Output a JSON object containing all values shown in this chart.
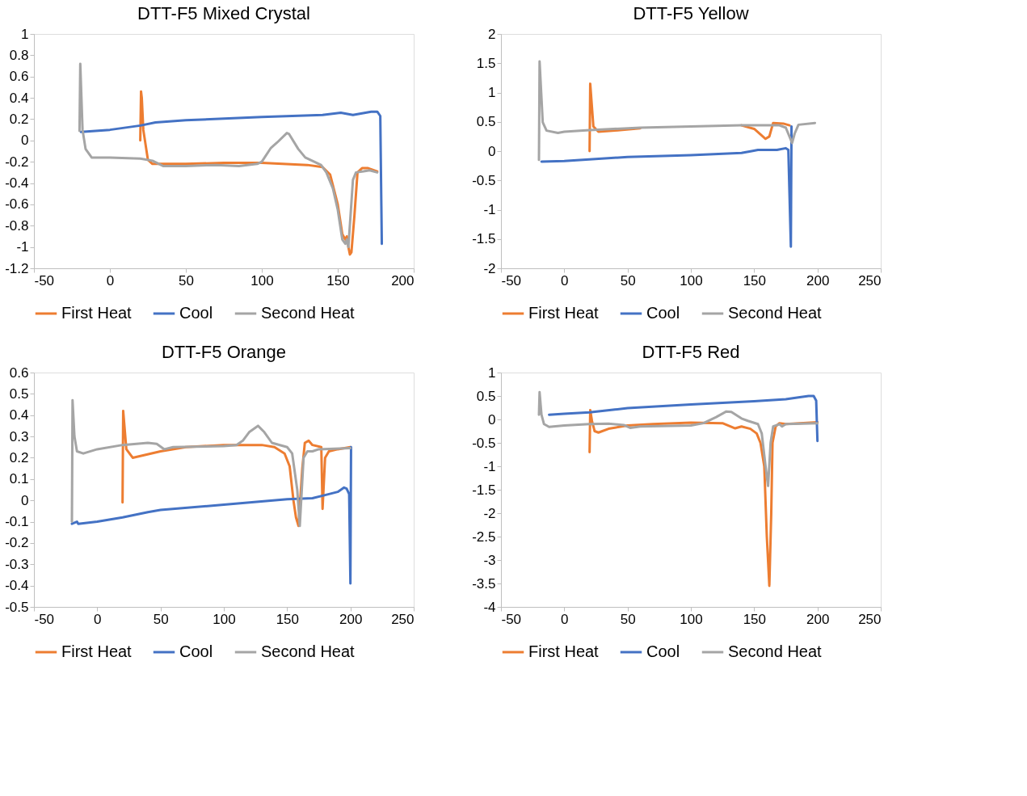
{
  "chart_data": [
    {
      "type": "line",
      "title": "DTT-F5 Mixed Crystal",
      "xlim": [
        -50,
        200
      ],
      "xticks": [
        -50,
        0,
        50,
        100,
        150,
        200
      ],
      "ylim": [
        -1.2,
        1
      ],
      "yticks": [
        -1.2,
        -1,
        -0.8,
        -0.6,
        -0.4,
        -0.2,
        0,
        0.2,
        0.4,
        0.6,
        0.8,
        1
      ],
      "grid": false,
      "legend": "bottom",
      "marker": "none",
      "line_style": "solid",
      "series": [
        {
          "name": "First Heat",
          "color": "#ed7d31",
          "x": [
            20,
            20.5,
            21,
            22,
            25,
            28,
            50,
            75,
            100,
            130,
            140,
            145,
            150,
            153,
            155,
            156,
            157,
            158,
            159,
            161,
            163,
            166,
            170,
            176
          ],
          "values": [
            0,
            0.46,
            0.4,
            0.1,
            -0.18,
            -0.22,
            -0.22,
            -0.21,
            -0.21,
            -0.23,
            -0.25,
            -0.32,
            -0.6,
            -0.88,
            -0.93,
            -0.9,
            -1.0,
            -1.07,
            -1.05,
            -0.7,
            -0.3,
            -0.26,
            -0.26,
            -0.29
          ]
        },
        {
          "name": "Cool",
          "color": "#4472c4",
          "x": [
            -19,
            0,
            20,
            30,
            50,
            100,
            140,
            152,
            160,
            172,
            176,
            178,
            179
          ],
          "values": [
            0.08,
            0.1,
            0.14,
            0.17,
            0.19,
            0.22,
            0.24,
            0.26,
            0.24,
            0.27,
            0.27,
            0.23,
            -0.97
          ]
        },
        {
          "name": "Second Heat",
          "color": "#a5a5a5",
          "x": [
            -20,
            -19.5,
            -18,
            -16,
            -12,
            0,
            20,
            28,
            35,
            50,
            70,
            85,
            97,
            100,
            106,
            110,
            116.5,
            118,
            124,
            128.6,
            139,
            142.5,
            146.8,
            150,
            153,
            155,
            156,
            157,
            160,
            162,
            167,
            171,
            176
          ],
          "values": [
            0.09,
            0.72,
            0.1,
            -0.08,
            -0.16,
            -0.16,
            -0.17,
            -0.19,
            -0.24,
            -0.24,
            -0.23,
            -0.24,
            -0.22,
            -0.2,
            -0.07,
            -0.02,
            0.07,
            0.06,
            -0.08,
            -0.16,
            -0.23,
            -0.3,
            -0.45,
            -0.65,
            -0.93,
            -0.97,
            -0.93,
            -1.0,
            -0.37,
            -0.3,
            -0.29,
            -0.28,
            -0.3
          ]
        }
      ]
    },
    {
      "type": "line",
      "title": "DTT-F5 Yellow",
      "xlim": [
        -50,
        250
      ],
      "xticks": [
        -50,
        0,
        50,
        100,
        150,
        200,
        250
      ],
      "ylim": [
        -2,
        2
      ],
      "yticks": [
        -2,
        -1.5,
        -1,
        -0.5,
        0,
        0.5,
        1,
        1.5,
        2
      ],
      "grid": false,
      "legend": "bottom",
      "marker": "none",
      "line_style": "solid",
      "series": [
        {
          "name": "First Heat",
          "color": "#ed7d31",
          "x": [
            20,
            20.5,
            23,
            27,
            40,
            60,
            100,
            140,
            150,
            159,
            162,
            165,
            173,
            178
          ],
          "values": [
            0,
            1.15,
            0.42,
            0.33,
            0.35,
            0.39,
            null,
            0.44,
            0.38,
            0.21,
            0.25,
            0.48,
            0.47,
            0.44
          ]
        },
        {
          "name": "Cool",
          "color": "#4472c4",
          "x": [
            -18,
            0,
            50,
            100,
            140,
            148,
            153,
            168,
            175,
            177,
            179,
            179.5
          ],
          "values": [
            -0.18,
            -0.17,
            -0.1,
            -0.07,
            -0.03,
            0,
            0.02,
            0.02,
            0.05,
            0.02,
            -1.63,
            0.42
          ]
        },
        {
          "name": "Second Heat",
          "color": "#a5a5a5",
          "x": [
            -20,
            -19.5,
            -17,
            -14,
            -5,
            0,
            20,
            60,
            100,
            140,
            170,
            175,
            180,
            182,
            185,
            198
          ],
          "values": [
            -0.15,
            1.53,
            0.49,
            0.35,
            0.31,
            0.33,
            0.36,
            0.4,
            0.42,
            0.44,
            0.44,
            0.4,
            0.14,
            0.3,
            0.45,
            0.48
          ]
        }
      ]
    },
    {
      "type": "line",
      "title": "DTT-F5 Orange",
      "xlim": [
        -50,
        250
      ],
      "xticks": [
        -50,
        0,
        50,
        100,
        150,
        200,
        250
      ],
      "ylim": [
        -0.5,
        0.6
      ],
      "yticks": [
        -0.5,
        -0.4,
        -0.3,
        -0.2,
        -0.1,
        0,
        0.1,
        0.2,
        0.3,
        0.4,
        0.5,
        0.6
      ],
      "grid": false,
      "legend": "bottom",
      "marker": "none",
      "line_style": "solid",
      "series": [
        {
          "name": "First Heat",
          "color": "#ed7d31",
          "x": [
            20,
            20.5,
            23,
            28,
            50,
            70,
            100,
            130,
            140,
            148,
            152,
            155,
            157,
            159,
            162,
            164,
            167,
            170,
            177,
            178,
            180,
            183,
            190,
            200
          ],
          "values": [
            -0.01,
            0.42,
            0.24,
            0.2,
            0.23,
            0.25,
            0.26,
            0.26,
            0.25,
            0.22,
            0.16,
            0,
            -0.08,
            -0.12,
            0.15,
            0.27,
            0.28,
            0.26,
            0.25,
            -0.04,
            0.2,
            0.23,
            0.24,
            0.25
          ]
        },
        {
          "name": "Cool",
          "color": "#4472c4",
          "x": [
            -20,
            -16,
            -15,
            0,
            20,
            40,
            50,
            100,
            150,
            170,
            180,
            190,
            195,
            197,
            199,
            200,
            200.5
          ],
          "values": [
            -0.11,
            -0.1,
            -0.11,
            -0.1,
            -0.08,
            -0.055,
            -0.045,
            -0.02,
            0.005,
            0.01,
            0.025,
            0.04,
            0.06,
            0.055,
            0.03,
            -0.39,
            0.25
          ]
        },
        {
          "name": "Second Heat",
          "color": "#a5a5a5",
          "x": [
            -20,
            -19.5,
            -18,
            -16,
            -11,
            0,
            20,
            40,
            47,
            53,
            60,
            100,
            110,
            115,
            120,
            127,
            132,
            138,
            150,
            154,
            158,
            160,
            163,
            166,
            170,
            175,
            200
          ],
          "values": [
            -0.1,
            0.47,
            0.3,
            0.23,
            0.22,
            0.24,
            0.26,
            0.27,
            0.265,
            0.24,
            0.25,
            0.255,
            0.26,
            0.28,
            0.32,
            0.35,
            0.32,
            0.27,
            0.25,
            0.22,
            0.05,
            -0.12,
            0.2,
            0.23,
            0.23,
            0.24,
            0.245
          ]
        }
      ]
    },
    {
      "type": "line",
      "title": "DTT-F5 Red",
      "xlim": [
        -50,
        250
      ],
      "xticks": [
        -50,
        0,
        50,
        100,
        150,
        200,
        250
      ],
      "ylim": [
        -4,
        1
      ],
      "yticks": [
        -4,
        -3.5,
        -3,
        -2.5,
        -2,
        -1.5,
        -1,
        -0.5,
        0,
        0.5,
        1
      ],
      "grid": false,
      "legend": "bottom",
      "marker": "none",
      "line_style": "solid",
      "series": [
        {
          "name": "First Heat",
          "color": "#ed7d31",
          "x": [
            20,
            20.5,
            22,
            24,
            27,
            35,
            50,
            70,
            100,
            125,
            135,
            140,
            147,
            152,
            155,
            158,
            160,
            162,
            163.5,
            164.5,
            167,
            170,
            175,
            200
          ],
          "values": [
            -0.7,
            0.2,
            -0.05,
            -0.25,
            -0.28,
            -0.2,
            -0.13,
            -0.1,
            -0.07,
            -0.08,
            -0.19,
            -0.15,
            -0.2,
            -0.3,
            -0.5,
            -1.0,
            -2.5,
            -3.55,
            -2.0,
            -0.5,
            -0.15,
            -0.08,
            -0.1,
            -0.06
          ]
        },
        {
          "name": "Cool",
          "color": "#4472c4",
          "x": [
            -12,
            0,
            20,
            40,
            50,
            100,
            150,
            175,
            185,
            193,
            197,
            199,
            200
          ],
          "values": [
            0.1,
            0.12,
            0.15,
            0.21,
            0.24,
            0.32,
            0.39,
            0.43,
            0.47,
            0.5,
            0.5,
            0.4,
            -0.46
          ]
        },
        {
          "name": "Second Heat",
          "color": "#a5a5a5",
          "x": [
            -20,
            -19.5,
            -18,
            -16,
            -12,
            0,
            20,
            35,
            47,
            52,
            60,
            100,
            110,
            120,
            128,
            132,
            140,
            145,
            153,
            156,
            159,
            161,
            163,
            165,
            170,
            172,
            175,
            200
          ],
          "values": [
            0.1,
            0.58,
            0.1,
            -0.1,
            -0.16,
            -0.13,
            -0.1,
            -0.09,
            -0.12,
            -0.18,
            -0.15,
            -0.13,
            -0.08,
            0.05,
            0.17,
            0.16,
            0.02,
            -0.03,
            -0.1,
            -0.3,
            -1.0,
            -1.42,
            -0.5,
            -0.15,
            -0.1,
            -0.15,
            -0.1,
            -0.08
          ]
        }
      ]
    }
  ]
}
